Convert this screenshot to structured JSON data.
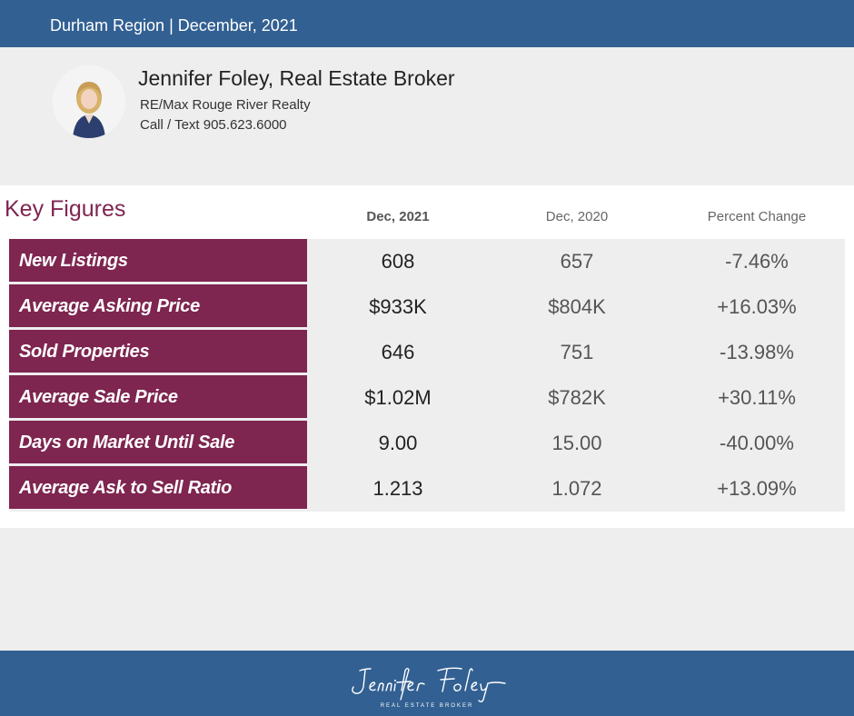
{
  "header": {
    "title": "Durham Region | December, 2021"
  },
  "agent": {
    "name": "Jennifer Foley, Real Estate Broker",
    "company": "RE/Max Rouge River Realty",
    "phone": "Call / Text 905.623.6000"
  },
  "key_figures": {
    "title": "Key Figures",
    "columns": [
      "Dec, 2021",
      "Dec, 2020",
      "Percent Change"
    ],
    "rows": [
      {
        "label": "New Listings",
        "current": "608",
        "previous": "657",
        "change": "-7.46%"
      },
      {
        "label": "Average Asking Price",
        "current": "$933K",
        "previous": "$804K",
        "change": "+16.03%"
      },
      {
        "label": "Sold Properties",
        "current": "646",
        "previous": "751",
        "change": "-13.98%"
      },
      {
        "label": "Average Sale Price",
        "current": "$1.02M",
        "previous": "$782K",
        "change": "+30.11%"
      },
      {
        "label": "Days on Market Until Sale",
        "current": "9.00",
        "previous": "15.00",
        "change": "-40.00%"
      },
      {
        "label": "Average Ask to Sell Ratio",
        "current": "1.213",
        "previous": "1.072",
        "change": "+13.09%"
      }
    ]
  },
  "footer": {
    "logo_name": "Jennifer Foley",
    "logo_tagline": "REAL ESTATE BROKER"
  },
  "colors": {
    "header_blue": "#326092",
    "label_maroon": "#7e2550",
    "panel_gray": "#eeeeee"
  }
}
